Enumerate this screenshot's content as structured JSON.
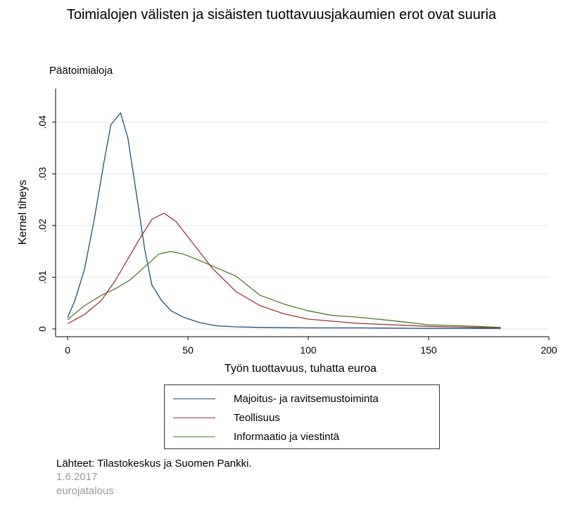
{
  "title": "Toimialojen välisten ja sisäisten tuottavuusjakaumien erot ovat suuria",
  "subtitle": "Päätoimialoja",
  "footer": {
    "source": "Lähteet: Tilastokeskus ja Suomen Pankki.",
    "date": "1.6.2017",
    "brand": "eurojatalous"
  },
  "colors": {
    "majoitus": "#1f4e79",
    "teollisuus": "#9b3535",
    "informaatio": "#4e7a29",
    "grid": "#e6e6e6",
    "axis": "#000000"
  },
  "chart_data": {
    "type": "line",
    "xlabel": "Työn tuottavuus, tuhatta euroa",
    "ylabel": "Kernel tiheys",
    "xlim": [
      -5,
      200
    ],
    "ylim": [
      -0.0015,
      0.0465
    ],
    "xticks": [
      "0",
      "50",
      "100",
      "150",
      "200"
    ],
    "yticks": [
      "0",
      ".01",
      ".02",
      ".03",
      ".04"
    ],
    "grid": true,
    "legend_position": "bottom",
    "series": [
      {
        "name": "Majoitus- ja ravitsemustoiminta",
        "color_key": "majoitus",
        "x": [
          0,
          3,
          7,
          11,
          15,
          18,
          22,
          25,
          28,
          32,
          35,
          39,
          43,
          48,
          55,
          62,
          70,
          80,
          100,
          120,
          150,
          180
        ],
        "y": [
          0.0022,
          0.0055,
          0.0115,
          0.021,
          0.032,
          0.0395,
          0.0418,
          0.037,
          0.028,
          0.0155,
          0.0085,
          0.0055,
          0.0035,
          0.0023,
          0.0012,
          0.0006,
          0.0004,
          0.0003,
          0.0002,
          0.0002,
          0.0001,
          0.0001
        ]
      },
      {
        "name": "Teollisuus",
        "color_key": "teollisuus",
        "x": [
          0,
          7,
          14,
          20,
          25,
          30,
          35,
          40,
          45,
          50,
          55,
          60,
          70,
          80,
          90,
          100,
          120,
          150,
          180
        ],
        "y": [
          0.001,
          0.0028,
          0.0055,
          0.0095,
          0.0135,
          0.0175,
          0.0212,
          0.0224,
          0.0208,
          0.0178,
          0.0148,
          0.0118,
          0.0072,
          0.0045,
          0.0029,
          0.0019,
          0.0011,
          0.0005,
          0.0002
        ]
      },
      {
        "name": "Informaatio ja viestintä",
        "color_key": "informaatio",
        "x": [
          0,
          7,
          14,
          20,
          26,
          32,
          38,
          43,
          48,
          55,
          62,
          70,
          80,
          90,
          100,
          110,
          120,
          135,
          150,
          165,
          180
        ],
        "y": [
          0.0018,
          0.0045,
          0.0065,
          0.0078,
          0.0095,
          0.012,
          0.0145,
          0.015,
          0.0145,
          0.0132,
          0.0118,
          0.0102,
          0.0065,
          0.0048,
          0.0035,
          0.0026,
          0.0023,
          0.0016,
          0.0008,
          0.0006,
          0.0003
        ]
      }
    ]
  }
}
